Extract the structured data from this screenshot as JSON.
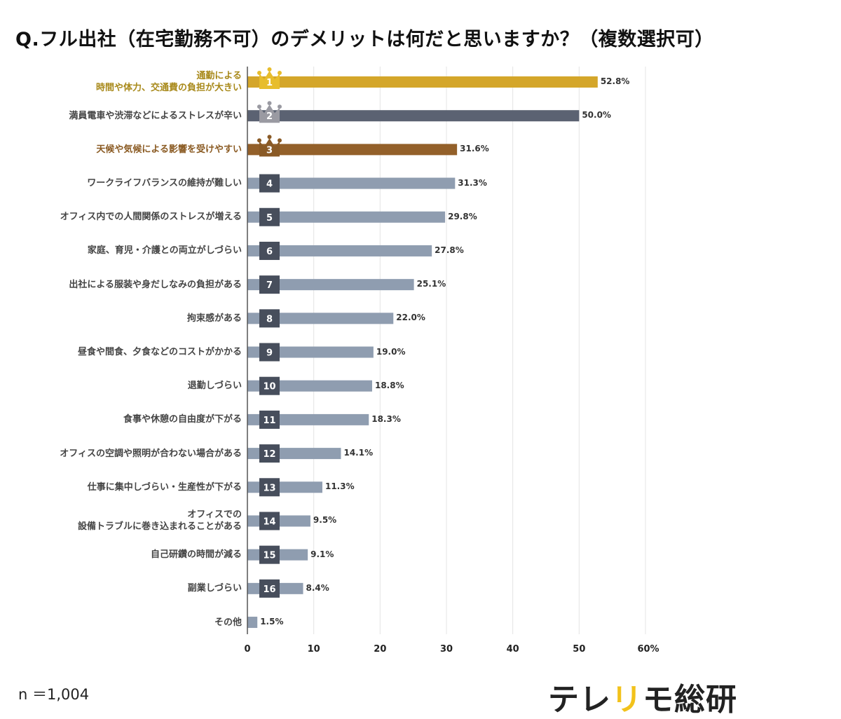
{
  "title": "Q.フル出社（在宅勤務不可）のデメリットは何だと思いますか？（複数選択可）",
  "sample_size": "n ＝1,004",
  "logo": {
    "part1": "テレ",
    "part2": "リ",
    "part3": "モ総研"
  },
  "colors": {
    "rank1": "#d4a62a",
    "rank2": "#5b6272",
    "rank3": "#93602a",
    "default": "#8f9db0",
    "badge": "#474e5c",
    "rank1_text": "#a8891a",
    "rank3_text": "#8a5a22"
  },
  "chart_data": {
    "type": "bar",
    "orientation": "horizontal",
    "title": "Q.フル出社（在宅勤務不可）のデメリットは何だと思いますか？（複数選択可）",
    "xlim": [
      0,
      60
    ],
    "x_ticks": [
      "0",
      "10",
      "20",
      "30",
      "40",
      "50",
      "60%"
    ],
    "grid": true,
    "categories": [
      "通勤による\n時間や体力、交通費の負担が大きい",
      "満員電車や渋滞などによるストレスが辛い",
      "天候や気候による影響を受けやすい",
      "ワークライフバランスの維持が難しい",
      "オフィス内での人間関係のストレスが増える",
      "家庭、育児・介護との両立がしづらい",
      "出社による服装や身だしなみの負担がある",
      "拘束感がある",
      "昼食や間食、夕食などのコストがかかる",
      "退勤しづらい",
      "食事や休憩の自由度が下がる",
      "オフィスの空調や照明が合わない場合がある",
      "仕事に集中しづらい・生産性が下がる",
      "オフィスでの\n設備トラブルに巻き込まれることがある",
      "自己研鑽の時間が減る",
      "副業しづらい",
      "その他"
    ],
    "values": [
      52.8,
      50.0,
      31.6,
      31.3,
      29.8,
      27.8,
      25.1,
      22.0,
      19.0,
      18.8,
      18.3,
      14.1,
      11.3,
      9.5,
      9.1,
      8.4,
      1.5
    ],
    "value_labels": [
      "52.8%",
      "50.0%",
      "31.6%",
      "31.3%",
      "29.8%",
      "27.8%",
      "25.1%",
      "22.0%",
      "19.0%",
      "18.8%",
      "18.3%",
      "14.1%",
      "11.3%",
      "9.5%",
      "9.1%",
      "8.4%",
      "1.5%"
    ],
    "ranks": [
      "1",
      "2",
      "3",
      "4",
      "5",
      "6",
      "7",
      "8",
      "9",
      "10",
      "11",
      "12",
      "13",
      "14",
      "15",
      "16",
      ""
    ]
  }
}
